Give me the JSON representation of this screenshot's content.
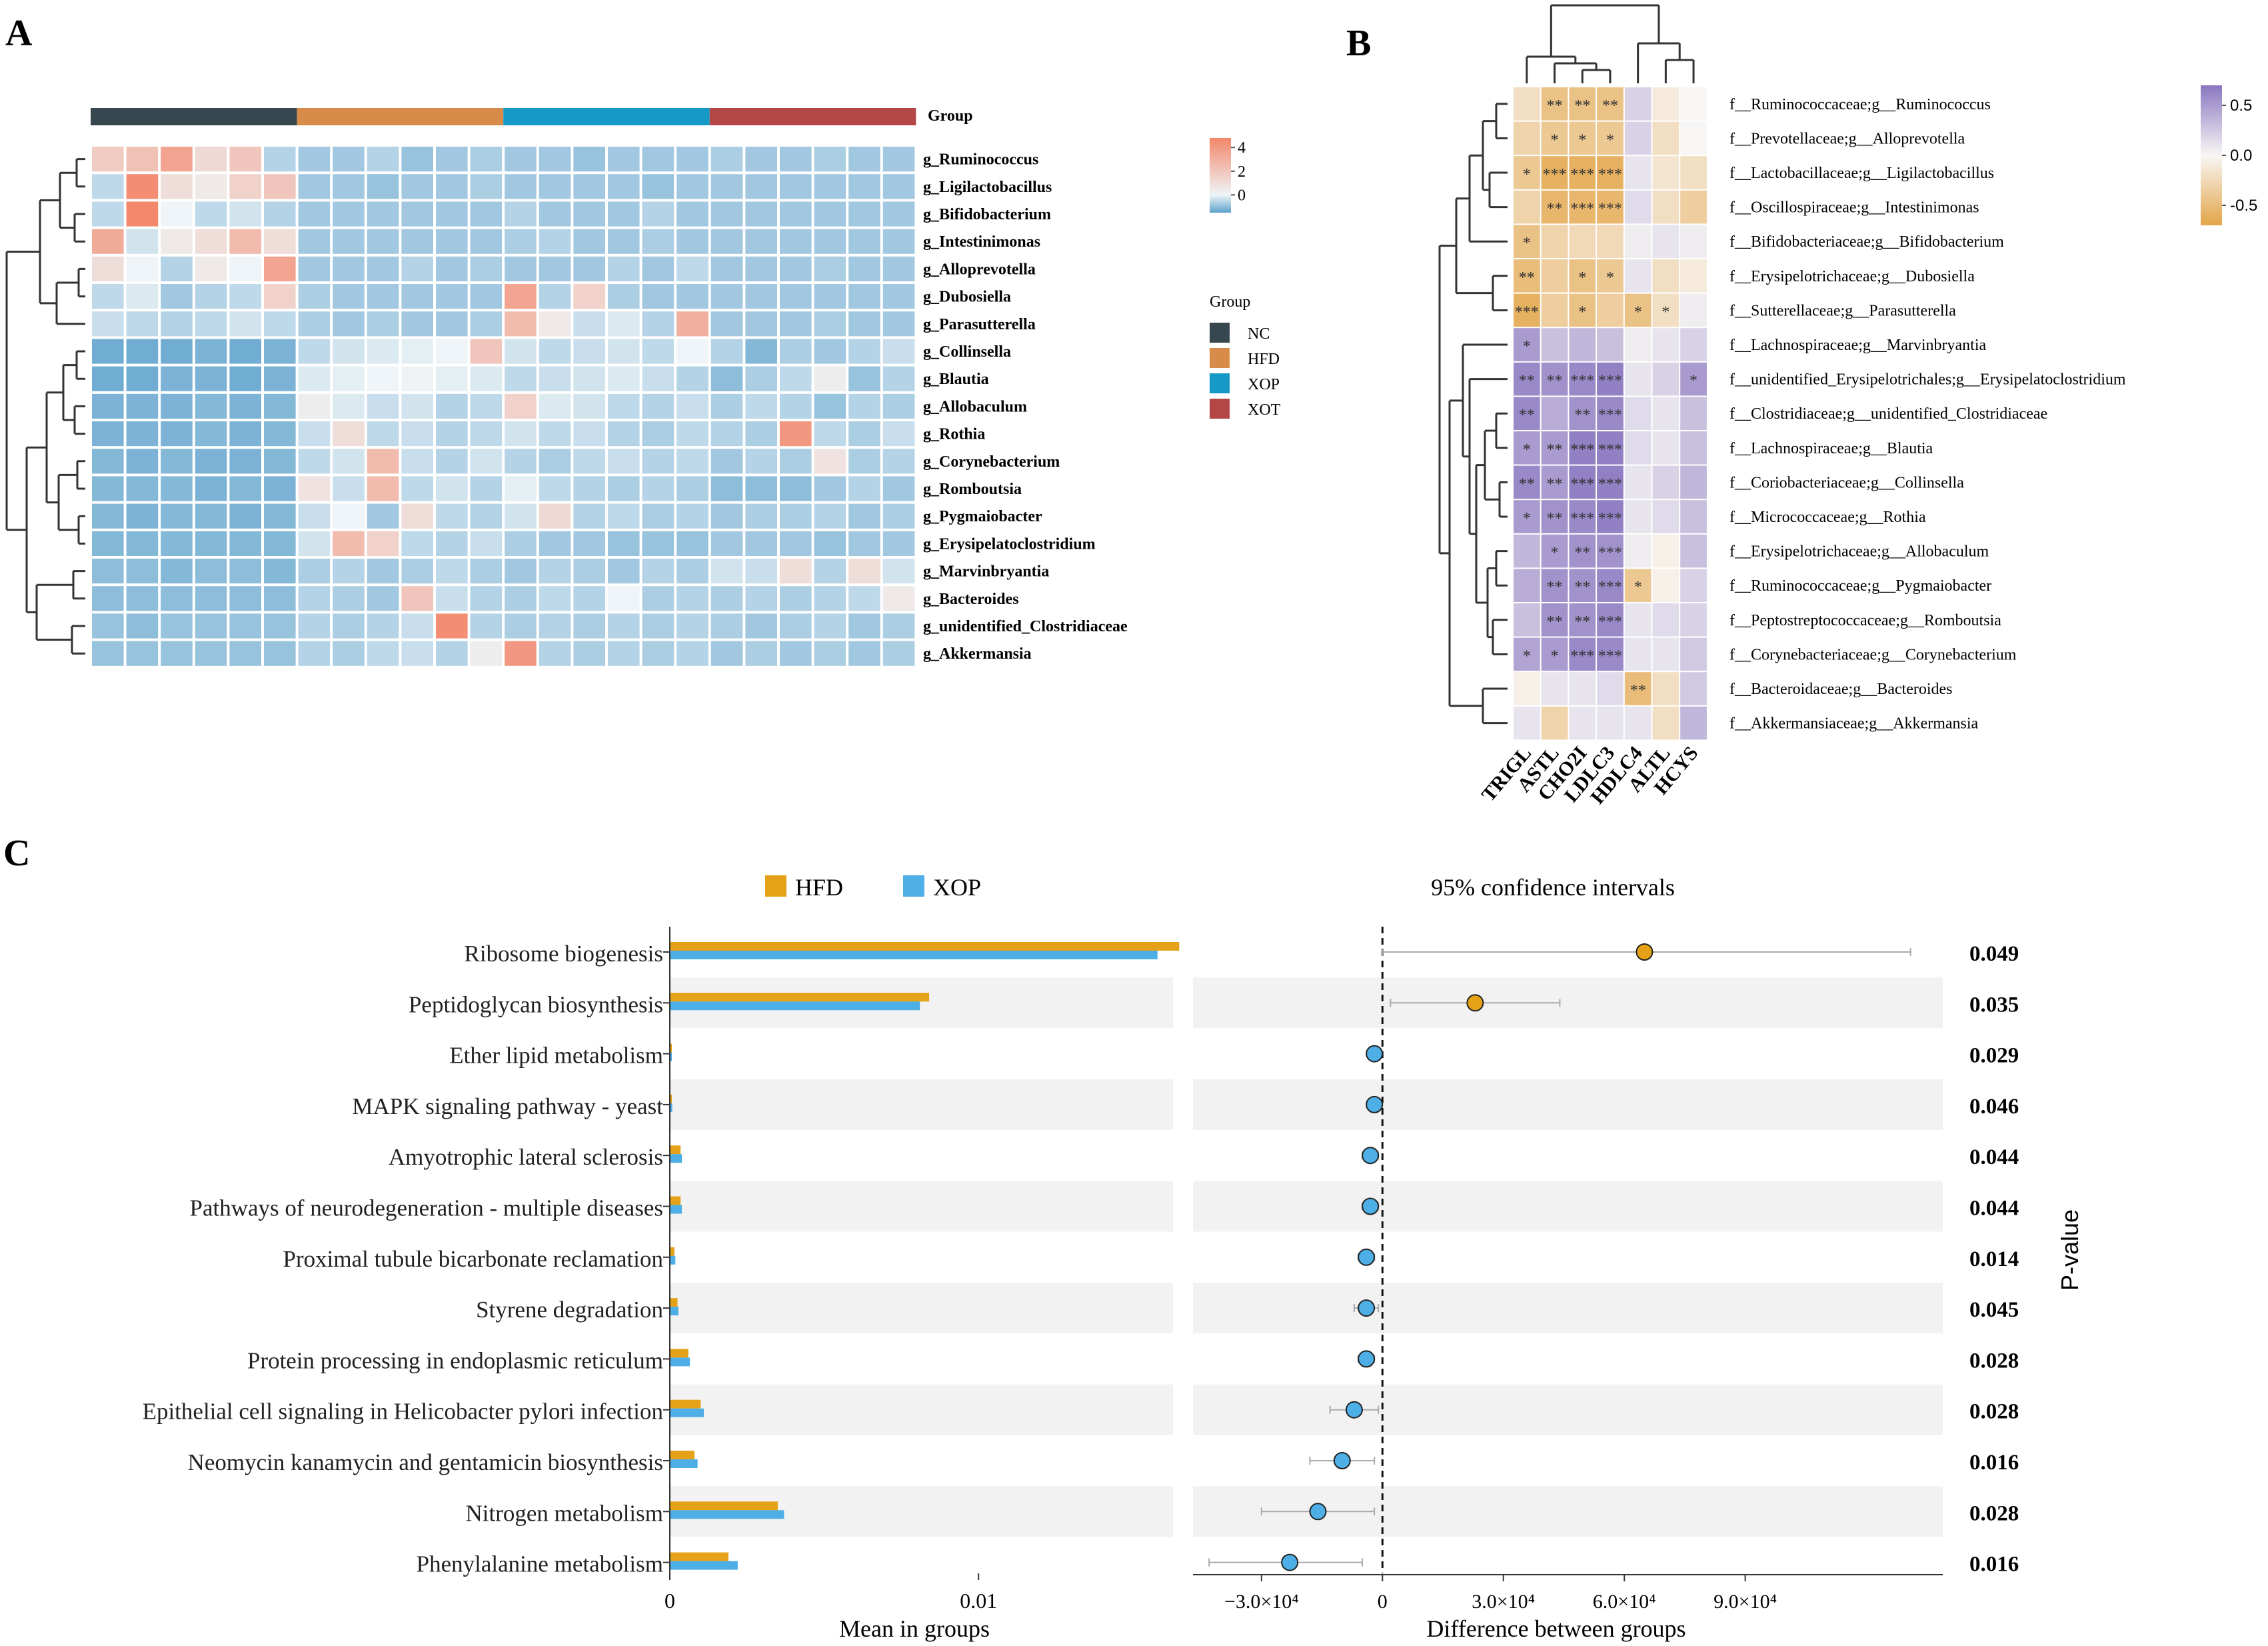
{
  "panel_labels": {
    "a": "A",
    "b": "B",
    "c": "C"
  },
  "colors": {
    "NC": "#37474f",
    "HFD": "#d98c4a",
    "XOP": "#1699c6",
    "XOT": "#b34747",
    "bar_hfd": "#e5a117",
    "bar_xop": "#4eaee6",
    "stripe": "#f2f2f2"
  },
  "chart_data": [
    {
      "type": "heatmap",
      "panel": "A",
      "group_title": "Group",
      "groups": [
        {
          "name": "NC",
          "n": 6
        },
        {
          "name": "HFD",
          "n": 6
        },
        {
          "name": "XOP",
          "n": 6
        },
        {
          "name": "XOT",
          "n": 6
        }
      ],
      "rows": [
        "g_Ruminococcus",
        "g_Ligilactobacillus",
        "g_Bifidobacterium",
        "g_Intestinimonas",
        "g_Alloprevotella",
        "g_Dubosiella",
        "g_Parasutterella",
        "g_Collinsella",
        "g_Blautia",
        "g_Allobaculum",
        "g_Rothia",
        "g_Corynebacterium",
        "g_Romboutsia",
        "g_Pygmaiobacter",
        "g_Erysipelatoclostridium",
        "g_Marvinbryantia",
        "g_Bacteroides",
        "g_unidentified_Clostridiaceae",
        "g_Akkermansia"
      ],
      "values": [
        [
          1.8,
          2.2,
          3.5,
          1.2,
          2.0,
          -0.6,
          -0.8,
          -0.8,
          -0.6,
          -0.9,
          -0.8,
          -0.7,
          -0.8,
          -0.8,
          -0.9,
          -0.8,
          -0.8,
          -0.8,
          -0.7,
          -0.8,
          -0.8,
          -0.7,
          -0.8,
          -0.8
        ],
        [
          -0.5,
          4.5,
          1.0,
          0.5,
          1.5,
          2.0,
          -0.8,
          -0.8,
          -0.9,
          -0.8,
          -0.8,
          -0.7,
          -0.8,
          -0.8,
          -0.8,
          -0.8,
          -0.9,
          -0.8,
          -0.8,
          -0.8,
          -0.8,
          -0.8,
          -0.8,
          -0.8
        ],
        [
          -0.5,
          4.7,
          0.0,
          -0.5,
          -0.3,
          -0.6,
          -0.8,
          -0.8,
          -0.8,
          -0.8,
          -0.8,
          -0.8,
          -0.6,
          -0.8,
          -0.8,
          -0.8,
          -0.6,
          -0.8,
          -0.8,
          -0.8,
          -0.8,
          -0.8,
          -0.8,
          -0.8
        ],
        [
          3.2,
          -0.3,
          0.5,
          1.0,
          2.5,
          1.0,
          -0.8,
          -0.8,
          -0.8,
          -0.8,
          -0.8,
          -0.8,
          -0.7,
          -0.6,
          -0.8,
          -0.8,
          -0.7,
          -0.8,
          -0.8,
          -0.8,
          -0.8,
          -0.8,
          -0.8,
          -0.8
        ],
        [
          1.0,
          0.0,
          -0.6,
          0.5,
          0.0,
          3.5,
          -0.8,
          -0.8,
          -0.8,
          -0.6,
          -0.8,
          -0.7,
          -0.8,
          -0.8,
          -0.8,
          -0.6,
          -0.8,
          -0.5,
          -0.8,
          -0.8,
          -0.8,
          -0.7,
          -0.8,
          -0.8
        ],
        [
          -0.5,
          -0.2,
          -0.8,
          -0.6,
          -0.5,
          1.5,
          -0.7,
          -0.8,
          -0.8,
          -0.8,
          -0.8,
          -0.8,
          3.5,
          -0.6,
          1.5,
          -0.7,
          -0.8,
          -0.8,
          -0.8,
          -0.8,
          -0.8,
          -0.8,
          -0.8,
          -0.8
        ],
        [
          -0.4,
          -0.5,
          -0.6,
          -0.5,
          -0.3,
          -0.5,
          -0.7,
          -0.8,
          -0.7,
          -0.8,
          -0.8,
          -0.7,
          2.5,
          0.5,
          -0.4,
          -0.2,
          -0.6,
          3.0,
          -0.8,
          -0.8,
          -0.8,
          -0.7,
          -0.8,
          -0.8
        ],
        [
          -1.3,
          -1.3,
          -1.3,
          -1.2,
          -1.3,
          -1.2,
          -0.5,
          -0.3,
          -0.2,
          -0.1,
          0.0,
          2.0,
          -0.3,
          -0.5,
          -0.4,
          -0.3,
          -0.5,
          0.0,
          -0.6,
          -1.1,
          -0.7,
          -0.8,
          -0.6,
          -0.4
        ],
        [
          -1.3,
          -1.3,
          -1.2,
          -1.2,
          -1.3,
          -1.2,
          -0.2,
          -0.1,
          0.0,
          0.1,
          -0.1,
          -0.2,
          -0.5,
          -0.4,
          -0.3,
          -0.2,
          -0.4,
          -0.6,
          -1.0,
          -0.7,
          -0.5,
          0.3,
          -0.9,
          -0.6
        ],
        [
          -1.2,
          -1.2,
          -1.2,
          -1.1,
          -1.2,
          -1.1,
          0.3,
          -0.2,
          -0.4,
          -0.3,
          -0.6,
          -0.5,
          1.5,
          -0.2,
          -0.3,
          -0.5,
          -0.6,
          -0.4,
          -0.7,
          -0.5,
          -0.6,
          -0.9,
          -0.6,
          -0.7
        ],
        [
          -1.2,
          -1.2,
          -1.2,
          -1.1,
          -1.2,
          -1.1,
          -0.4,
          1.0,
          -0.5,
          -0.4,
          -0.6,
          -0.5,
          -0.3,
          -0.5,
          -0.4,
          -0.6,
          -0.7,
          -0.5,
          -0.6,
          -0.7,
          4.0,
          -0.5,
          -0.7,
          -0.4
        ],
        [
          -1.1,
          -1.2,
          -1.1,
          -1.2,
          -1.2,
          -1.1,
          -0.5,
          -0.3,
          2.5,
          -0.4,
          -0.6,
          -0.3,
          -0.6,
          -0.7,
          -0.5,
          -0.4,
          -0.6,
          -0.5,
          -0.8,
          -0.6,
          -0.7,
          0.8,
          -0.7,
          -0.6
        ],
        [
          -1.1,
          -1.1,
          -1.1,
          -1.2,
          -1.1,
          -1.2,
          0.8,
          -0.4,
          2.5,
          -0.5,
          -0.3,
          -0.6,
          -0.1,
          -0.5,
          -0.6,
          -0.7,
          -0.6,
          -0.7,
          -1.0,
          -1.0,
          -1.0,
          -0.8,
          -0.6,
          -0.8
        ],
        [
          -1.1,
          -1.2,
          -1.1,
          -1.1,
          -1.2,
          -1.1,
          -0.4,
          0.0,
          -0.8,
          1.0,
          -0.5,
          -0.6,
          -0.3,
          1.2,
          -0.6,
          -0.5,
          -0.7,
          -0.6,
          -0.8,
          -0.7,
          -0.7,
          -0.6,
          -0.8,
          -0.7
        ],
        [
          -1.1,
          -1.1,
          -1.1,
          -1.1,
          -1.1,
          -1.1,
          -0.3,
          2.5,
          1.5,
          -0.5,
          -0.6,
          -0.4,
          -0.7,
          -0.8,
          -0.8,
          -0.9,
          -0.9,
          -0.9,
          -0.8,
          -0.8,
          -0.8,
          -0.9,
          -0.8,
          -0.8
        ],
        [
          -1.0,
          -1.0,
          -1.1,
          -1.0,
          -1.0,
          -1.1,
          -0.7,
          -0.6,
          -0.8,
          -0.7,
          -0.5,
          -0.7,
          -0.8,
          -0.6,
          -0.7,
          -0.8,
          -0.6,
          -0.7,
          -0.3,
          -0.4,
          1.0,
          -0.6,
          1.0,
          -0.3
        ],
        [
          -1.0,
          -1.0,
          -1.0,
          -1.0,
          -1.0,
          -1.0,
          -0.6,
          -0.7,
          -0.8,
          2.0,
          -0.4,
          -0.6,
          -0.7,
          -0.5,
          -0.6,
          0.0,
          -0.7,
          -0.6,
          -0.7,
          -0.6,
          -0.7,
          -0.6,
          -0.5,
          0.5
        ],
        [
          -0.9,
          -1.0,
          -0.9,
          -0.9,
          -0.9,
          -0.9,
          -0.6,
          -0.7,
          -0.6,
          -0.4,
          4.5,
          -0.6,
          -0.7,
          -0.6,
          -0.7,
          -0.6,
          -0.7,
          -0.6,
          -0.7,
          -0.8,
          -0.7,
          -0.6,
          -0.8,
          -0.7
        ],
        [
          -0.9,
          -0.9,
          -0.9,
          -0.9,
          -0.9,
          -0.9,
          -0.6,
          -0.7,
          -0.5,
          -0.4,
          -0.6,
          0.3,
          4.0,
          -0.6,
          -0.7,
          -0.6,
          -0.7,
          -0.6,
          -0.8,
          -0.7,
          -0.8,
          -0.7,
          -0.8,
          -0.7
        ]
      ],
      "colorbar": {
        "ticks": [
          4,
          2,
          0
        ],
        "range": [
          -1.5,
          4.8
        ],
        "colors": [
          "#5ea2cc",
          "#eef4f7",
          "#f3866a"
        ]
      },
      "legend": {
        "title": "Group",
        "entries": [
          "NC",
          "HFD",
          "XOP",
          "XOT"
        ]
      }
    },
    {
      "type": "heatmap",
      "panel": "B",
      "columns": [
        "TRIGL",
        "ASTL",
        "CHO2I",
        "LDLC3",
        "HDLC4",
        "ALTL",
        "HCYS"
      ],
      "rows": [
        "f__Ruminococcaceae;g__Ruminococcus",
        "f__Prevotellaceae;g__Alloprevotella",
        "f__Lactobacillaceae;g__Ligilactobacillus",
        "f__Oscillospiraceae;g__Intestinimonas",
        "f__Bifidobacteriaceae;g__Bifidobacterium",
        "f__Erysipelotrichaceae;g__Dubosiella",
        "f__Sutterellaceae;g__Parasutterella",
        "f__Lachnospiraceae;g__Marvinbryantia",
        "f__unidentified_Erysipelotrichales;g__Erysipelatoclostridium",
        "f__Clostridiaceae;g__unidentified_Clostridiaceae",
        "f__Lachnospiraceae;g__Blautia",
        "f__Coriobacteriaceae;g__Collinsella",
        "f__Micrococcaceae;g__Rothia",
        "f__Erysipelotrichaceae;g__Allobaculum",
        "f__Ruminococcaceae;g__Pygmaiobacter",
        "f__Peptostreptococcaceae;g__Romboutsia",
        "f__Corynebacteriaceae;g__Corynebacterium",
        "f__Bacteroidaceae;g__Bacteroides",
        "f__Akkermansiaceae;g__Akkermansia"
      ],
      "values": [
        [
          -0.2,
          -0.45,
          -0.45,
          -0.45,
          0.2,
          -0.1,
          0.0
        ],
        [
          -0.3,
          -0.4,
          -0.4,
          -0.4,
          0.2,
          -0.2,
          0.0
        ],
        [
          -0.4,
          -0.6,
          -0.6,
          -0.6,
          0.1,
          -0.15,
          -0.2
        ],
        [
          -0.3,
          -0.55,
          -0.55,
          -0.55,
          0.15,
          -0.2,
          -0.35
        ],
        [
          -0.45,
          -0.3,
          -0.25,
          -0.25,
          0.05,
          0.1,
          0.05
        ],
        [
          -0.5,
          -0.35,
          -0.45,
          -0.4,
          0.1,
          -0.2,
          -0.1
        ],
        [
          -0.6,
          -0.35,
          -0.45,
          -0.35,
          -0.45,
          -0.2,
          0.05
        ],
        [
          0.5,
          0.3,
          0.35,
          0.3,
          0.05,
          0.1,
          0.2
        ],
        [
          0.6,
          0.55,
          0.6,
          0.65,
          0.1,
          0.2,
          0.5
        ],
        [
          0.6,
          0.4,
          0.55,
          0.6,
          0.15,
          0.1,
          0.3
        ],
        [
          0.5,
          0.5,
          0.65,
          0.65,
          0.15,
          0.1,
          0.3
        ],
        [
          0.6,
          0.5,
          0.65,
          0.65,
          0.1,
          0.2,
          0.35
        ],
        [
          0.5,
          0.55,
          0.6,
          0.65,
          0.1,
          0.15,
          0.3
        ],
        [
          0.35,
          0.5,
          0.55,
          0.55,
          0.05,
          -0.05,
          0.3
        ],
        [
          0.4,
          0.55,
          0.55,
          0.6,
          -0.4,
          -0.05,
          0.2
        ],
        [
          0.3,
          0.55,
          0.55,
          0.6,
          0.1,
          0.15,
          0.2
        ],
        [
          0.45,
          0.5,
          0.6,
          0.6,
          0.1,
          0.1,
          0.25
        ],
        [
          -0.05,
          0.1,
          0.1,
          0.15,
          -0.5,
          -0.2,
          0.25
        ],
        [
          0.1,
          -0.3,
          0.1,
          0.1,
          0.1,
          -0.2,
          0.35
        ]
      ],
      "stars": [
        [
          "",
          "**",
          "**",
          "**",
          "",
          "",
          ""
        ],
        [
          "",
          "*",
          "*",
          "*",
          "",
          "",
          ""
        ],
        [
          "*",
          "***",
          "***",
          "***",
          "",
          "",
          ""
        ],
        [
          "",
          "**",
          "***",
          "***",
          "",
          "",
          ""
        ],
        [
          "*",
          "",
          "",
          "",
          "",
          "",
          ""
        ],
        [
          "**",
          "",
          "*",
          "*",
          "",
          "",
          ""
        ],
        [
          "***",
          "",
          "*",
          "",
          "*",
          "*",
          ""
        ],
        [
          "*",
          "",
          "",
          "",
          "",
          "",
          ""
        ],
        [
          "**",
          "**",
          "***",
          "***",
          "",
          "",
          "*"
        ],
        [
          "**",
          "",
          "**",
          "***",
          "",
          "",
          ""
        ],
        [
          "*",
          "**",
          "***",
          "***",
          "",
          "",
          ""
        ],
        [
          "**",
          "**",
          "***",
          "***",
          "",
          "",
          ""
        ],
        [
          "*",
          "**",
          "***",
          "***",
          "",
          "",
          ""
        ],
        [
          "",
          "*",
          "**",
          "***",
          "",
          "",
          ""
        ],
        [
          "",
          "**",
          "**",
          "***",
          "*",
          "",
          ""
        ],
        [
          "",
          "**",
          "**",
          "***",
          "",
          "",
          ""
        ],
        [
          "*",
          "*",
          "***",
          "***",
          "",
          "",
          ""
        ],
        [
          "",
          "",
          "",
          "",
          "**",
          "",
          ""
        ],
        [
          "",
          "",
          "",
          "",
          "",
          "",
          ""
        ]
      ],
      "colorbar": {
        "ticks": [
          0.5,
          0.0,
          -0.5
        ],
        "range": [
          -0.7,
          0.7
        ],
        "colors": [
          "#e3a547",
          "#f8f6f5",
          "#8a77c0"
        ]
      }
    },
    {
      "type": "bar",
      "panel": "C",
      "legend": [
        "HFD",
        "XOP"
      ],
      "categories": [
        "Ribosome biogenesis",
        "Peptidoglycan biosynthesis",
        "Ether lipid metabolism",
        "MAPK signaling pathway - yeast",
        "Amyotrophic lateral sclerosis",
        "Pathways of neurodegeneration - multiple diseases",
        "Proximal tubule bicarbonate reclamation",
        "Styrene degradation",
        "Protein processing in endoplasmic reticulum",
        "Epithelial cell signaling in Helicobacter pylori infection",
        "Neomycin kanamycin and gentamicin biosynthesis",
        "Nitrogen metabolism",
        "Phenylalanine metabolism"
      ],
      "series": [
        {
          "name": "HFD",
          "values": [
            0.0165,
            0.0084,
            3e-05,
            5e-05,
            0.00035,
            0.00035,
            0.00015,
            0.00025,
            0.0006,
            0.001,
            0.0008,
            0.0035,
            0.0019
          ]
        },
        {
          "name": "XOP",
          "values": [
            0.0158,
            0.0081,
            6e-05,
            8e-05,
            0.00039,
            0.00039,
            0.00018,
            0.00028,
            0.00065,
            0.0011,
            0.0009,
            0.0037,
            0.0022
          ]
        }
      ],
      "xlabel": "Mean in groups",
      "x_ticks": [
        "0",
        "0.01"
      ],
      "xlim": [
        0,
        0.0163
      ]
    },
    {
      "type": "scatter",
      "panel": "C",
      "title": "95% confidence intervals",
      "xlabel": "Difference between groups",
      "x_ticks": [
        "−3.0×10⁴",
        "0",
        "3.0×10⁴",
        "6.0×10⁴",
        "9.0×10⁴"
      ],
      "x_tick_values": [
        -0.0003,
        0,
        0.0003,
        0.0006,
        0.0009
      ],
      "xlim": [
        -0.00047,
        0.00139
      ],
      "estimate": [
        0.00065,
        0.00023,
        -2e-05,
        -2e-05,
        -3e-05,
        -3e-05,
        -4e-05,
        -4e-05,
        -4e-05,
        -7e-05,
        -0.0001,
        -0.00016,
        -0.00023
      ],
      "ci_low": [
        0.0,
        2e-05,
        -3e-05,
        -3e-05,
        -5e-05,
        -5e-05,
        -6e-05,
        -7e-05,
        -6e-05,
        -0.00013,
        -0.00018,
        -0.0003,
        -0.00043
      ],
      "ci_high": [
        0.00131,
        0.00044,
        -1e-05,
        -1e-05,
        -1e-05,
        -1e-05,
        -2e-05,
        -1e-05,
        -2e-05,
        -1e-05,
        -2e-05,
        -2e-05,
        -5e-05
      ],
      "higher_group": [
        "HFD",
        "HFD",
        "XOP",
        "XOP",
        "XOP",
        "XOP",
        "XOP",
        "XOP",
        "XOP",
        "XOP",
        "XOP",
        "XOP",
        "XOP"
      ],
      "p_values": [
        "0.049",
        "0.035",
        "0.029",
        "0.046",
        "0.044",
        "0.044",
        "0.014",
        "0.045",
        "0.028",
        "0.028",
        "0.016",
        "0.028",
        "0.016"
      ],
      "p_label": "P-value"
    }
  ]
}
